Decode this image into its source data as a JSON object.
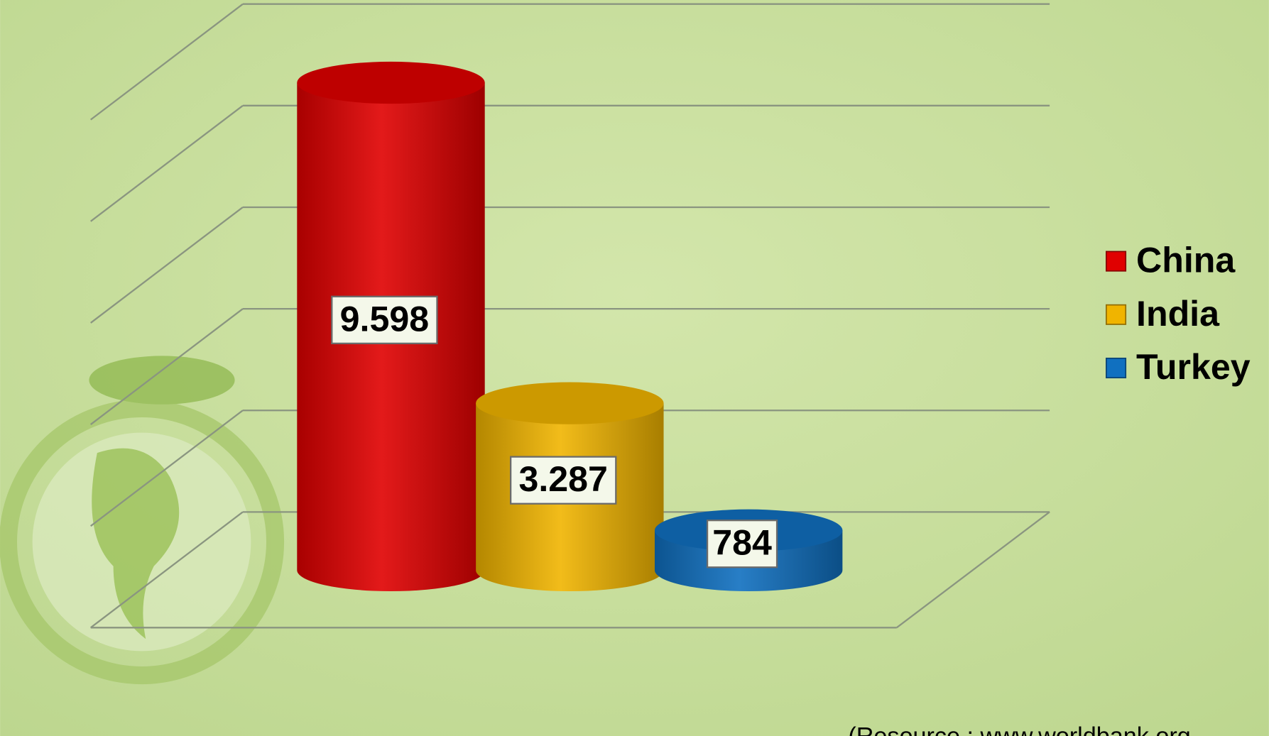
{
  "chart_data": {
    "type": "bar3d",
    "categories": [
      "China",
      "India",
      "Turkey"
    ],
    "series": [
      {
        "name": "China",
        "color": "#e00000",
        "values": [
          9598,
          null,
          null
        ],
        "value_labels": [
          "9.598",
          null,
          null
        ]
      },
      {
        "name": "India",
        "color": "#f0b400",
        "values": [
          null,
          3287,
          null
        ],
        "value_labels": [
          null,
          "3.287",
          null
        ]
      },
      {
        "name": "Turkey",
        "color": "#1070c0",
        "values": [
          null,
          null,
          784
        ],
        "value_labels": [
          null,
          null,
          "784"
        ]
      }
    ],
    "ylim": [
      0,
      10000
    ],
    "yticks": [
      0,
      2000,
      4000,
      6000,
      8000,
      10000
    ],
    "grid": true,
    "legend": "right",
    "source": "(Resource : www.worldbank.org"
  }
}
